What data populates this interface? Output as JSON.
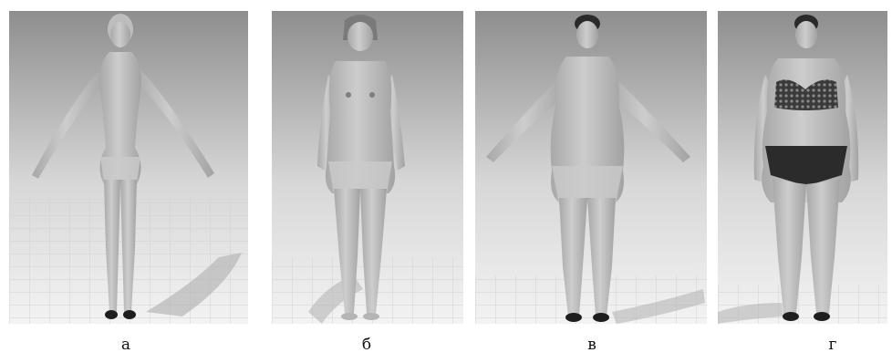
{
  "captions": [
    "а",
    "б",
    "в",
    "г"
  ],
  "figures": [
    {
      "icon": "mannequin-icon",
      "variant": "slim, short hair, T-pose, high heels"
    },
    {
      "icon": "mannequin-icon",
      "variant": "medium build, bob haircut, arms down, barefoot"
    },
    {
      "icon": "mannequin-icon",
      "variant": "heavy build, hair tied back, arms spread, heels"
    },
    {
      "icon": "mannequin-icon",
      "variant": "heavy build, dark bra with pattern and dark briefs, heels"
    }
  ],
  "colors": {
    "background_top": "#8f8f8f",
    "background_bottom": "#f4f4f4",
    "skin": "#c2c2c2",
    "skin_shade": "#9e9e9e",
    "grid": "#d6d6d6",
    "shadow": "#b3b3b3",
    "shoe": "#1e1e1e"
  }
}
